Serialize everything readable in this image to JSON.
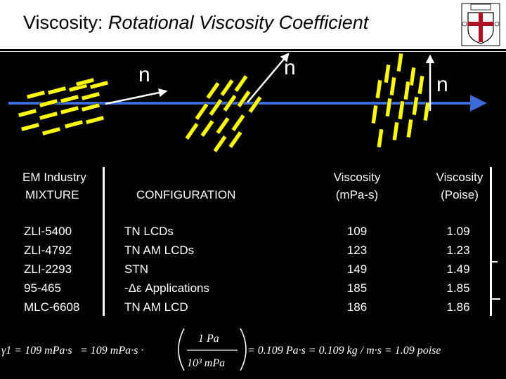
{
  "slide": {
    "title_plain": "Viscosity: ",
    "title_italic": "Rotational Viscosity Coefficient"
  },
  "director_labels": [
    "n",
    "n",
    "n"
  ],
  "table": {
    "headers": {
      "mixture_line1": "EM Industry",
      "mixture_line2": "MIXTURE",
      "configuration": "CONFIGURATION",
      "viscosity_mpas_line1": "Viscosity",
      "viscosity_mpas_line2": "(mPa-s)",
      "viscosity_poise_line1": "Viscosity",
      "viscosity_poise_line2": "(Poise)"
    },
    "mixtures": [
      "ZLI-5400",
      "ZLI-4792",
      "ZLI-2293",
      "95-465",
      "MLC-6608"
    ],
    "configurations": [
      "TN LCDs",
      "TN AM LCDs",
      "STN",
      "-Δε Applications",
      "TN AM LCD"
    ],
    "viscosity_mpas": [
      "109",
      "123",
      "149",
      "185",
      "186"
    ],
    "viscosity_poise": [
      "1.09",
      "1.23",
      "1.49",
      "1.85",
      "1.86"
    ]
  },
  "equation": {
    "lhs": "γ1 = 109 mPa·s",
    "mid": "= 109 mPa·s ·",
    "frac_num": "1 Pa",
    "frac_den": "10³ mPa",
    "rhs": "= 0.109 Pa·s = 0.109 kg / m·s = 1.09 poise"
  },
  "colors": {
    "background": "#000000",
    "header": "#ffffff",
    "axis": "#3a6bd8",
    "molecule": "#ffff00",
    "crest_red": "#b01020"
  }
}
